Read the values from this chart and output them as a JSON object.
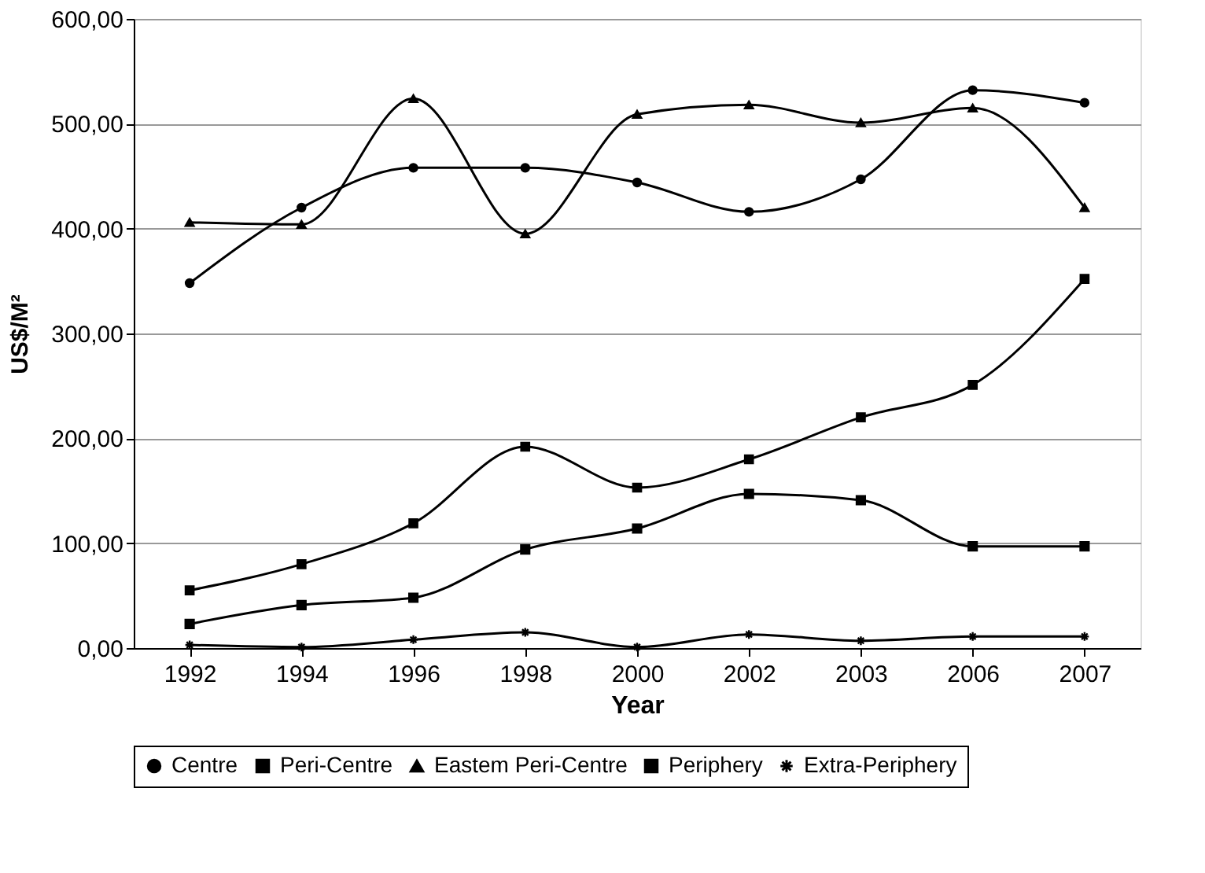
{
  "chart_data": {
    "type": "line",
    "xlabel": "Year",
    "ylabel": "US$/M²",
    "categories": [
      "1992",
      "1994",
      "1996",
      "1998",
      "2000",
      "2002",
      "2003",
      "2006",
      "2007"
    ],
    "series": [
      {
        "name": "Centre",
        "color": "#000000",
        "marker": "circle",
        "values": [
          348,
          420,
          458,
          458,
          444,
          416,
          447,
          532,
          520
        ]
      },
      {
        "name": "Peri-Centre",
        "color": "#000000",
        "marker": "square",
        "values": [
          55,
          80,
          119,
          192,
          153,
          180,
          220,
          251,
          352
        ]
      },
      {
        "name": "Eastem Peri-Centre",
        "color": "#000000",
        "marker": "triangle",
        "values": [
          406,
          404,
          524,
          395,
          509,
          518,
          501,
          515,
          420
        ]
      },
      {
        "name": "Periphery",
        "color": "#000000",
        "marker": "square",
        "values": [
          23,
          41,
          48,
          94,
          114,
          147,
          141,
          97,
          97
        ]
      },
      {
        "name": "Extra-Periphery",
        "color": "#000000",
        "marker": "cross",
        "values": [
          3,
          1,
          8,
          15,
          1,
          13,
          7,
          11,
          11
        ]
      }
    ],
    "ylim": [
      0,
      600
    ],
    "yticks": [
      {
        "value": 0,
        "label": "0,00"
      },
      {
        "value": 100,
        "label": "100,00"
      },
      {
        "value": 200,
        "label": "200,00"
      },
      {
        "value": 300,
        "label": "300,00"
      },
      {
        "value": 400,
        "label": "400,00"
      },
      {
        "value": 500,
        "label": "500,00"
      },
      {
        "value": 600,
        "label": "600,00"
      }
    ],
    "grid": "y",
    "legend": "bottom",
    "line_style": "solid"
  }
}
